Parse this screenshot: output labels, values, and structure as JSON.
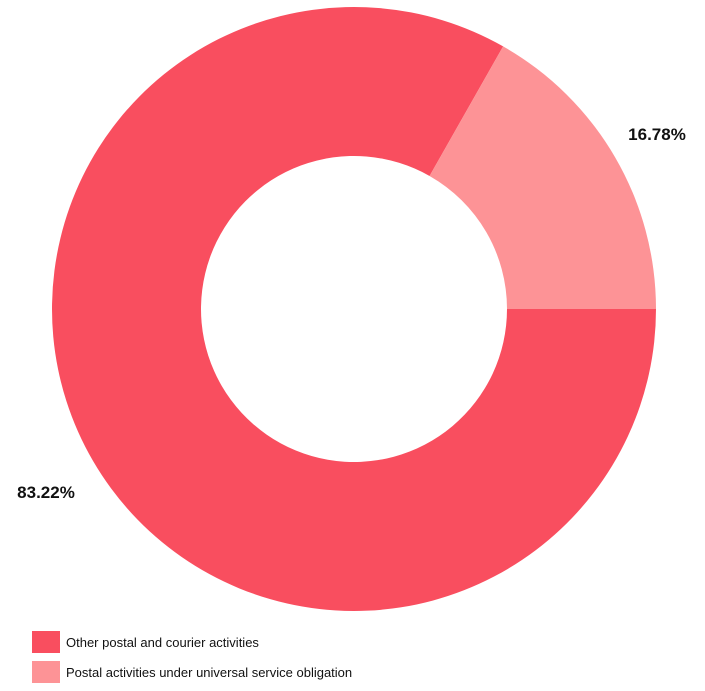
{
  "chart_data": {
    "type": "pie",
    "donut": true,
    "categories": [
      "Other postal and courier activities",
      "Postal activities under universal service obligation"
    ],
    "values": [
      83.22,
      16.78
    ],
    "value_labels": [
      "83.22%",
      "16.78%"
    ],
    "colors": [
      "#F94E5F",
      "#FD9396"
    ],
    "legend_placement": "bottom-left"
  }
}
